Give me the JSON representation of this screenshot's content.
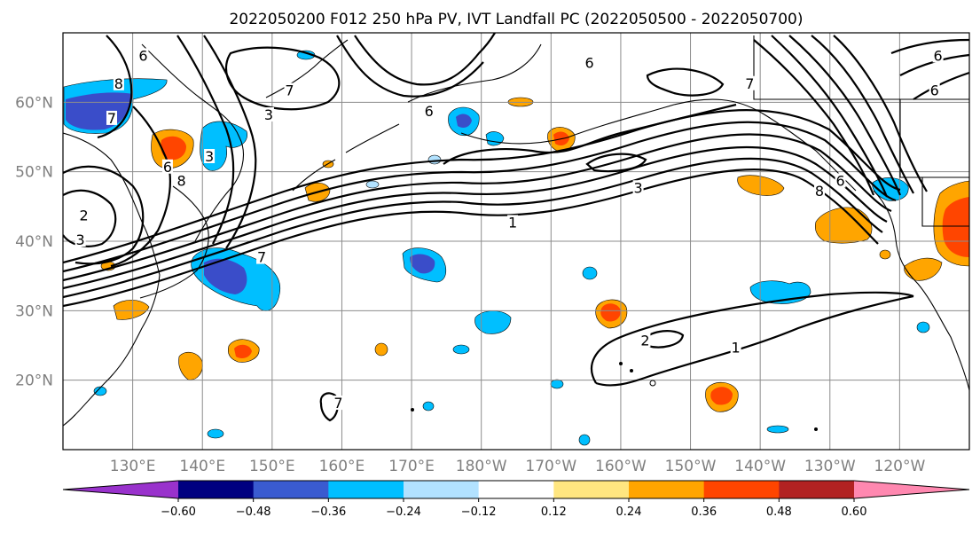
{
  "title": "2022050200 F012 250 hPa PV, IVT Landfall PC (2022050500 - 2022050700)",
  "map": {
    "lon_range": [
      120,
      250
    ],
    "lat_range": [
      10,
      70
    ],
    "lon_ticks": [
      {
        "lon": 130,
        "label": "130°E"
      },
      {
        "lon": 140,
        "label": "140°E"
      },
      {
        "lon": 150,
        "label": "150°E"
      },
      {
        "lon": 160,
        "label": "160°E"
      },
      {
        "lon": 170,
        "label": "170°E"
      },
      {
        "lon": 180,
        "label": "180°W"
      },
      {
        "lon": 190,
        "label": "170°W"
      },
      {
        "lon": 200,
        "label": "160°W"
      },
      {
        "lon": 210,
        "label": "150°W"
      },
      {
        "lon": 220,
        "label": "140°W"
      },
      {
        "lon": 230,
        "label": "130°W"
      },
      {
        "lon": 240,
        "label": "120°W"
      }
    ],
    "lat_ticks": [
      {
        "lat": 20,
        "label": "20°N"
      },
      {
        "lat": 30,
        "label": "30°N"
      },
      {
        "lat": 40,
        "label": "40°N"
      },
      {
        "lat": 50,
        "label": "50°N"
      },
      {
        "lat": 60,
        "label": "60°N"
      }
    ],
    "grid": true,
    "contour_labels": [
      {
        "text": "1",
        "lon": 184.5,
        "lat": 42.5
      },
      {
        "text": "1",
        "lon": 216.5,
        "lat": 24.5
      },
      {
        "text": "2",
        "lon": 203.5,
        "lat": 25.5
      },
      {
        "text": "3",
        "lon": 202.5,
        "lat": 47.5
      },
      {
        "text": "7",
        "lon": 218.5,
        "lat": 62.5
      },
      {
        "text": "8",
        "lon": 228.5,
        "lat": 47.0
      },
      {
        "text": "6",
        "lon": 231.5,
        "lat": 48.5
      },
      {
        "text": "3",
        "lon": 141.0,
        "lat": 52.0
      },
      {
        "text": "8",
        "lon": 137.0,
        "lat": 48.5
      },
      {
        "text": "6",
        "lon": 135.0,
        "lat": 50.5
      },
      {
        "text": "7",
        "lon": 152.5,
        "lat": 61.5
      },
      {
        "text": "3",
        "lon": 149.5,
        "lat": 58.0
      },
      {
        "text": "2",
        "lon": 123.0,
        "lat": 43.5
      },
      {
        "text": "3",
        "lon": 122.5,
        "lat": 40.0
      },
      {
        "text": "8",
        "lon": 128.0,
        "lat": 62.5
      },
      {
        "text": "7",
        "lon": 127.0,
        "lat": 57.5
      },
      {
        "text": "6",
        "lon": 131.5,
        "lat": 66.5
      },
      {
        "text": "7",
        "lon": 148.5,
        "lat": 37.5
      },
      {
        "text": "6",
        "lon": 245.5,
        "lat": 66.5
      },
      {
        "text": "6",
        "lon": 245.0,
        "lat": 61.5
      },
      {
        "text": "6",
        "lon": 195.5,
        "lat": 65.5
      },
      {
        "text": "6",
        "lon": 172.5,
        "lat": 58.5
      },
      {
        "text": "7",
        "lon": 159.5,
        "lat": 16.5
      }
    ],
    "shading_colors": {
      "neg_strong": "#3a4dc9",
      "neg_mid": "#00bfff",
      "neg_weak": "#b2e2ff",
      "pos_weak": "#ffe680",
      "pos_mid": "#ffa500",
      "pos_strong": "#ff4500"
    }
  },
  "colorbar": {
    "colors": [
      "#9932cc",
      "#000080",
      "#3a5bd0",
      "#00bfff",
      "#b2e2ff",
      "#ffffff",
      "#ffe680",
      "#ffa500",
      "#ff4500",
      "#b22222",
      "#ff88b0"
    ],
    "boundaries": [
      -0.72,
      -0.6,
      -0.48,
      -0.36,
      -0.24,
      -0.12,
      0.12,
      0.24,
      0.36,
      0.48,
      0.6,
      0.72
    ],
    "tick_labels": [
      "−0.60",
      "−0.48",
      "−0.36",
      "−0.24",
      "−0.12",
      "0.12",
      "0.24",
      "0.36",
      "0.48",
      "0.60"
    ],
    "extend": "both"
  }
}
